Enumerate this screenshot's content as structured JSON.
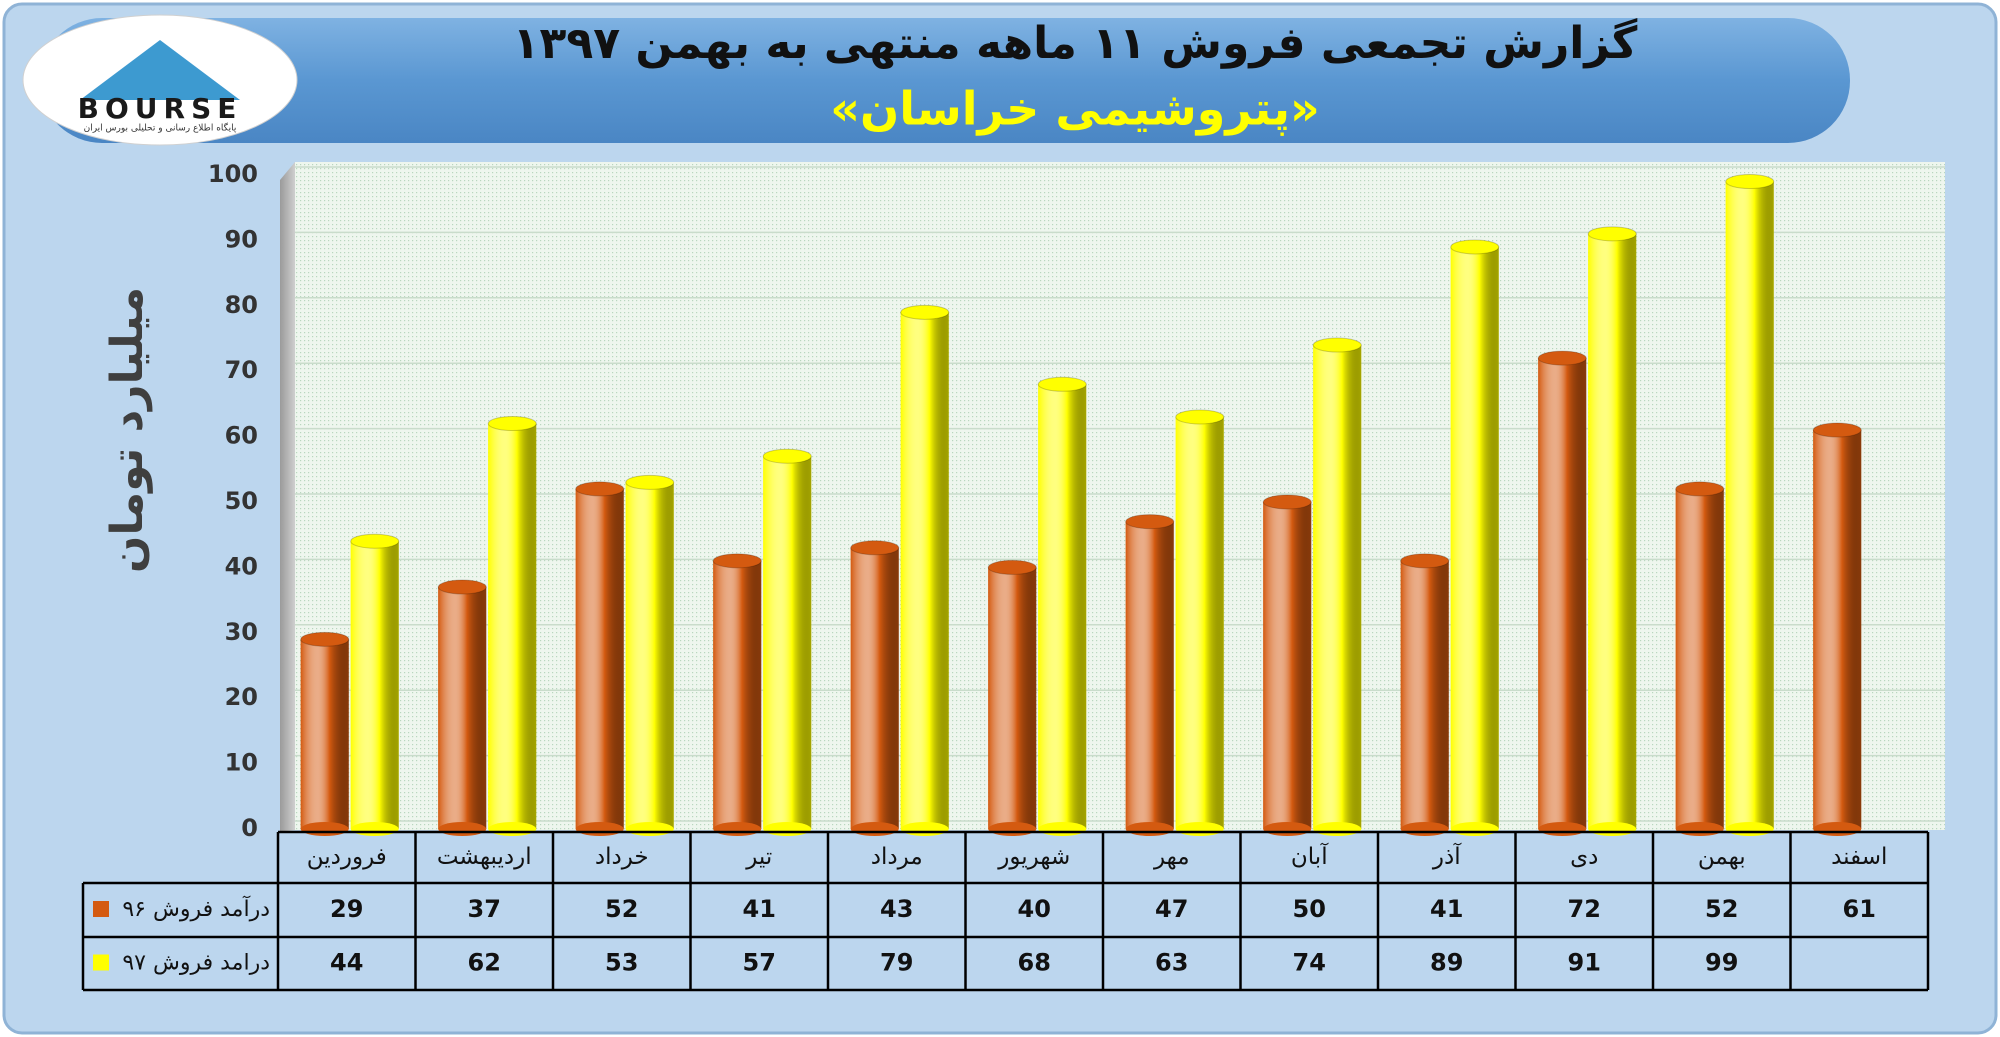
{
  "logo": {
    "text": "BOURSE",
    "caption": "پایگاه اطلاع رسانی و تحلیلی بورس ایران"
  },
  "chart_data": {
    "type": "bar",
    "title": "گزارش تجمعی فروش ۱۱ ماهه منتهی به بهمن ۱۳۹۷",
    "subtitle": "«پتروشیمی خراسان»",
    "y_label": "میلیارد تومان",
    "categories": [
      "فروردین",
      "اردیبهشت",
      "خرداد",
      "تیر",
      "مرداد",
      "شهریور",
      "مهر",
      "آبان",
      "آذر",
      "دی",
      "بهمن",
      "اسفند"
    ],
    "series": [
      {
        "name": "درآمد فروش ۹۶",
        "color": "#d45a10",
        "values": [
          29,
          37,
          52,
          41,
          43,
          40,
          47,
          50,
          41,
          72,
          52,
          61
        ]
      },
      {
        "name": "درامد فروش ۹۷",
        "color": "#ffff00",
        "values": [
          44,
          62,
          53,
          57,
          79,
          68,
          63,
          74,
          89,
          91,
          99,
          null
        ]
      }
    ],
    "ylim": [
      0,
      100
    ],
    "yticks": [
      0,
      10,
      20,
      30,
      40,
      50,
      60,
      70,
      80,
      90,
      100
    ],
    "grid": true
  }
}
